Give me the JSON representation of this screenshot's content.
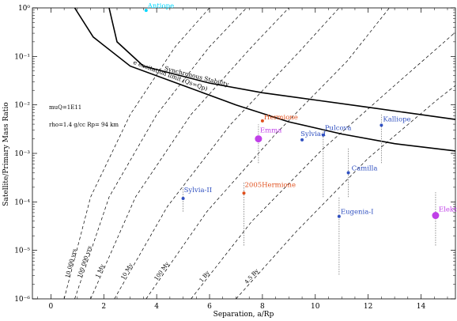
{
  "chart_data": {
    "type": "scatter",
    "xlabel": "Separation, a/Rp",
    "ylabel": "Satellite/Primary Mass Ratio",
    "xlim": [
      -0.7,
      15.3
    ],
    "ylim_log10": [
      -6,
      0
    ],
    "yscale": "log",
    "x_ticks": [
      0,
      2,
      4,
      6,
      8,
      10,
      12,
      14
    ],
    "y_tick_exponents": [
      -6,
      -5,
      -4,
      -3,
      -2,
      -1,
      0
    ],
    "y_tick_labels": [
      "10⁻⁶",
      "10⁻⁵",
      "10⁻⁴",
      "10⁻³",
      "10⁻²",
      "10⁻¹",
      "10⁰"
    ],
    "annotations": [
      "muQ=1E11",
      "rho=1.4 g/cc Rp= 94 km"
    ],
    "curves": [
      {
        "label": "Synchronous Stability",
        "points": [
          [
            2.2,
            0
          ],
          [
            2.5,
            -0.7
          ],
          [
            3.5,
            -1.2
          ],
          [
            6,
            -1.55
          ],
          [
            8,
            -1.75
          ],
          [
            10,
            -1.9
          ],
          [
            12,
            -2.05
          ],
          [
            15.3,
            -2.3
          ]
        ]
      },
      {
        "label": "e excitation limit (Qs=Qp)",
        "points": [
          [
            0.9,
            0
          ],
          [
            1.6,
            -0.6
          ],
          [
            3,
            -1.2
          ],
          [
            5,
            -1.6
          ],
          [
            7,
            -2.0
          ],
          [
            9,
            -2.35
          ],
          [
            11,
            -2.6
          ],
          [
            13,
            -2.8
          ],
          [
            15.3,
            -2.95
          ]
        ]
      }
    ],
    "isochrones": [
      {
        "label": "10 000 yrs",
        "points": [
          [
            0.5,
            -6
          ],
          [
            1.5,
            -3.9
          ],
          [
            3.0,
            -2.2
          ],
          [
            4.7,
            -0.8
          ],
          [
            6.0,
            0
          ]
        ]
      },
      {
        "label": "100 000 yrs",
        "points": [
          [
            0.9,
            -6
          ],
          [
            2.2,
            -3.9
          ],
          [
            4.0,
            -2.2
          ],
          [
            6.0,
            -0.8
          ],
          [
            7.4,
            0
          ]
        ]
      },
      {
        "label": "1 My",
        "points": [
          [
            1.5,
            -6
          ],
          [
            3.2,
            -3.9
          ],
          [
            5.3,
            -2.2
          ],
          [
            7.6,
            -0.8
          ],
          [
            9.0,
            0
          ]
        ]
      },
      {
        "label": "10 My",
        "points": [
          [
            2.4,
            -6
          ],
          [
            4.4,
            -4.1
          ],
          [
            6.8,
            -2.4
          ],
          [
            9.4,
            -0.9
          ],
          [
            10.9,
            0
          ]
        ]
      },
      {
        "label": "100 My",
        "points": [
          [
            3.6,
            -6
          ],
          [
            5.9,
            -4.2
          ],
          [
            8.5,
            -2.6
          ],
          [
            11.2,
            -1.1
          ],
          [
            12.8,
            0
          ]
        ]
      },
      {
        "label": "1 By",
        "points": [
          [
            5.3,
            -6
          ],
          [
            7.6,
            -4.4
          ],
          [
            10.3,
            -2.9
          ],
          [
            13.0,
            -1.6
          ],
          [
            15.3,
            -0.5
          ]
        ]
      },
      {
        "label": "4.5 By",
        "points": [
          [
            7.0,
            -6
          ],
          [
            9.3,
            -4.6
          ],
          [
            12.0,
            -3.1
          ],
          [
            14.6,
            -1.9
          ],
          [
            15.3,
            -1.6
          ]
        ]
      }
    ],
    "series": [
      {
        "name": "Antiope",
        "x": 3.6,
        "y_log10": -0.05,
        "color": "#00d8ff",
        "size": 2
      },
      {
        "name": "Hermione",
        "x": 8.0,
        "y_log10": -2.33,
        "color": "#e0501e",
        "size": 2
      },
      {
        "name": "Emma",
        "x": 7.85,
        "y_log10": -2.7,
        "color": "#c040e8",
        "size": 4.5,
        "err_log10": [
          -3.2,
          -2.4
        ]
      },
      {
        "name": "Pulcova",
        "x": 10.3,
        "y_log10": -2.62,
        "color": "#3050c0",
        "size": 2,
        "err_log10": [
          -3.9,
          -2.5
        ]
      },
      {
        "name": "Sylvia-I",
        "x": 9.5,
        "y_log10": -2.72,
        "color": "#3050c0",
        "size": 2
      },
      {
        "name": "Kalliope",
        "x": 12.5,
        "y_log10": -2.42,
        "color": "#3050c0",
        "size": 2,
        "err_log10": [
          -3.2,
          -2.2
        ]
      },
      {
        "name": "Camilla",
        "x": 11.25,
        "y_log10": -3.4,
        "color": "#3050c0",
        "size": 2,
        "err_log10": [
          -3.9,
          -2.9
        ]
      },
      {
        "name": "2005Hermione",
        "x": 7.3,
        "y_log10": -3.82,
        "color": "#e0501e",
        "size": 2,
        "err_log10": [
          -4.9,
          -3.6
        ]
      },
      {
        "name": "Sylvia-II",
        "x": 5.0,
        "y_log10": -3.93,
        "color": "#3050c0",
        "size": 2,
        "err_log10": [
          -4.2,
          -3.7
        ]
      },
      {
        "name": "Eugenia-I",
        "x": 10.9,
        "y_log10": -4.3,
        "color": "#3050c0",
        "size": 2,
        "err_log10": [
          -5.5,
          -3.9
        ]
      },
      {
        "name": "Elektra",
        "x": 14.55,
        "y_log10": -4.28,
        "color": "#c040e8",
        "size": 4.5,
        "err_log10": [
          -4.9,
          -3.8
        ]
      }
    ]
  }
}
